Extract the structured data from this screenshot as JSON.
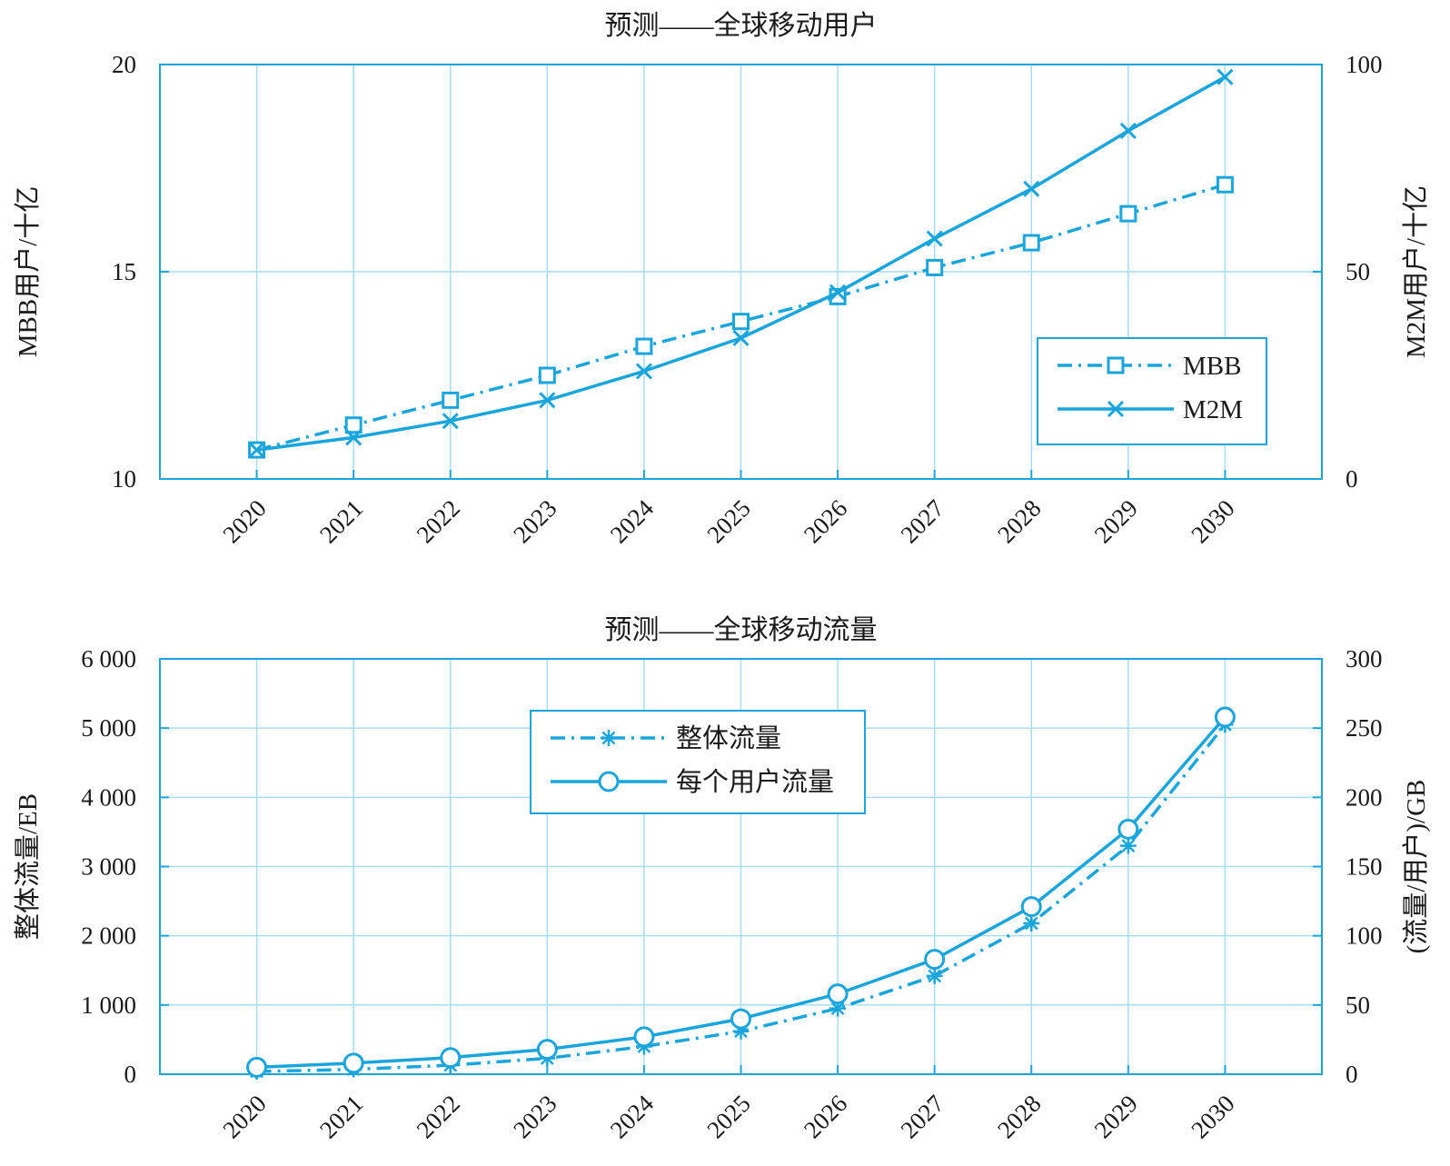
{
  "colors": {
    "series": "#1aa6dc",
    "grid": "#a8dcf0",
    "text": "#1a1a1a"
  },
  "chart_data": [
    {
      "type": "line",
      "title": "预测——全球移动用户",
      "x": [
        "2020",
        "2021",
        "2022",
        "2023",
        "2024",
        "2025",
        "2026",
        "2027",
        "2028",
        "2029",
        "2030"
      ],
      "ylabel": "MBB用户/十亿",
      "ylim": [
        10,
        20
      ],
      "yticks": [
        10,
        15,
        20
      ],
      "ytick_labels": [
        "10",
        "15",
        "20"
      ],
      "y2label": "M2M用户/十亿",
      "y2lim": [
        0,
        100
      ],
      "y2ticks": [
        0,
        50,
        100
      ],
      "y2tick_labels": [
        "0",
        "50",
        "100"
      ],
      "grid": true,
      "legend": "center-right",
      "series": [
        {
          "name": "MBB",
          "axis": "left",
          "line": "dashdot",
          "marker": "square",
          "values": [
            10.7,
            11.3,
            11.9,
            12.5,
            13.2,
            13.8,
            14.4,
            15.1,
            15.7,
            16.4,
            17.1
          ]
        },
        {
          "name": "M2M",
          "axis": "right",
          "line": "solid",
          "marker": "x",
          "values": [
            7,
            10,
            14,
            19,
            26,
            34,
            45,
            58,
            70,
            84,
            97
          ]
        }
      ]
    },
    {
      "type": "line",
      "title": "预测——全球移动流量",
      "x": [
        "2020",
        "2021",
        "2022",
        "2023",
        "2024",
        "2025",
        "2026",
        "2027",
        "2028",
        "2029",
        "2030"
      ],
      "ylabel": "整体流量/EB",
      "ylim": [
        0,
        6000
      ],
      "yticks": [
        0,
        1000,
        2000,
        3000,
        4000,
        5000,
        6000
      ],
      "ytick_labels": [
        "0",
        "1 000",
        "2 000",
        "3 000",
        "4 000",
        "5 000",
        "6 000"
      ],
      "y2label": "(流量/用户)/GB",
      "y2lim": [
        0,
        300
      ],
      "y2ticks": [
        0,
        50,
        100,
        150,
        200,
        250,
        300
      ],
      "y2tick_labels": [
        "0",
        "50",
        "100",
        "150",
        "200",
        "250",
        "300"
      ],
      "grid": true,
      "legend": "upper-center",
      "series": [
        {
          "name": "整体流量",
          "axis": "left",
          "line": "dashdot",
          "marker": "star",
          "values": [
            40,
            70,
            130,
            230,
            400,
            620,
            950,
            1420,
            2180,
            3300,
            5050
          ]
        },
        {
          "name": "每个用户流量",
          "axis": "right",
          "line": "solid",
          "marker": "circle",
          "values": [
            5,
            8,
            12,
            18,
            27,
            40,
            58,
            83,
            121,
            177,
            258
          ]
        }
      ]
    }
  ]
}
